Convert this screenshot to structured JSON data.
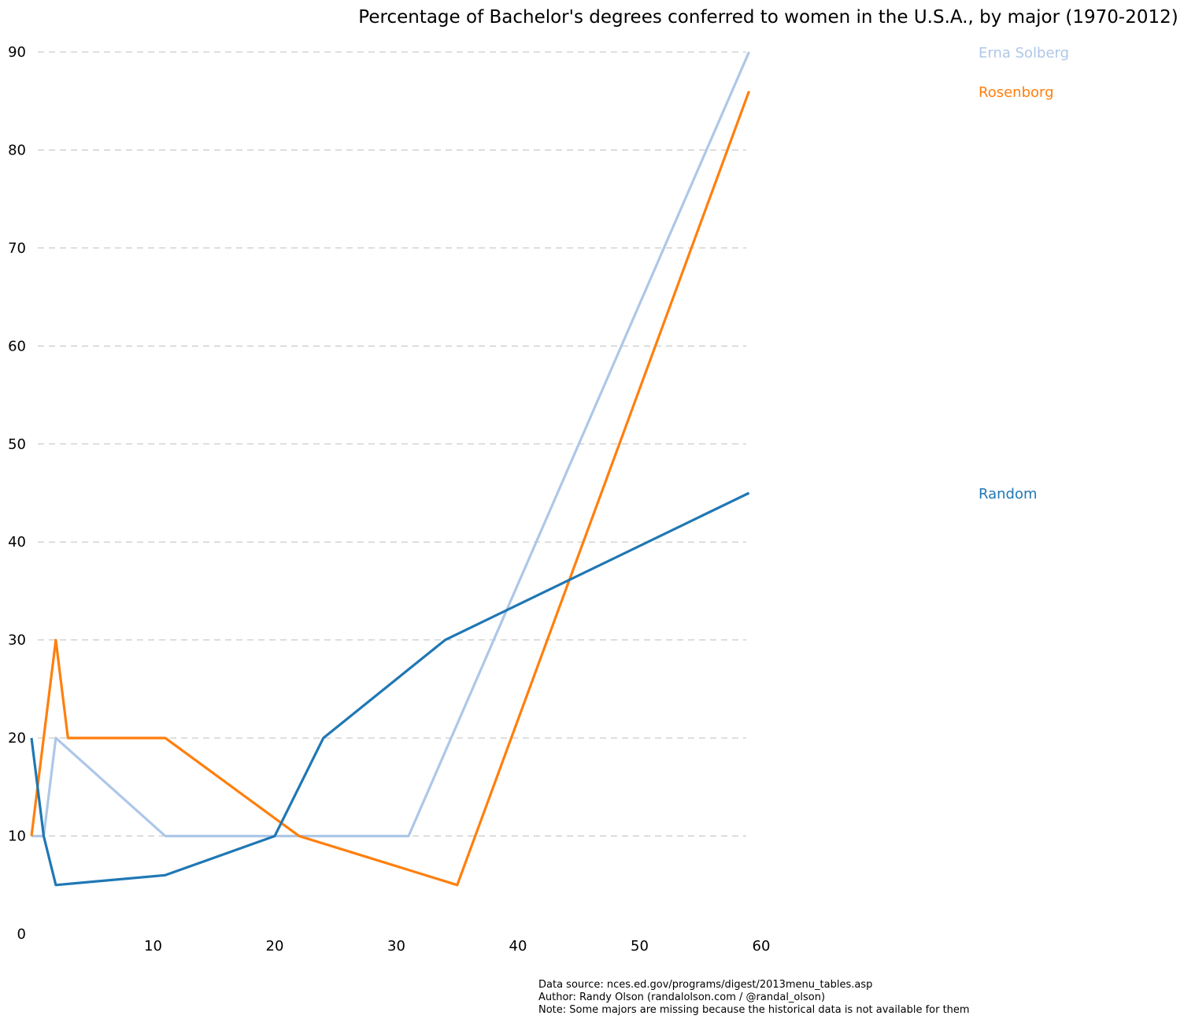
{
  "chart_data": {
    "type": "line",
    "title": "Percentage of Bachelor's degrees conferred to women in the U.S.A., by major (1970-2012)",
    "xlabel": "",
    "ylabel": "",
    "xlim": [
      0,
      60
    ],
    "ylim": [
      0,
      90
    ],
    "x_ticks": [
      10,
      20,
      30,
      40,
      50,
      60
    ],
    "y_ticks": [
      0,
      10,
      20,
      30,
      40,
      50,
      60,
      70,
      80,
      90
    ],
    "grid": "horizontal dashed",
    "legend": "right of plot, labels at line end values",
    "series": [
      {
        "name": "Erna Solberg",
        "color": "#aec7e8",
        "points": [
          [
            0,
            10
          ],
          [
            1,
            10
          ],
          [
            2,
            20
          ],
          [
            11,
            10
          ],
          [
            23,
            10
          ],
          [
            31,
            10
          ],
          [
            59,
            90
          ]
        ]
      },
      {
        "name": "Rosenborg",
        "color": "#ff7f0e",
        "points": [
          [
            0,
            10
          ],
          [
            2,
            30
          ],
          [
            3,
            20
          ],
          [
            11,
            20
          ],
          [
            22,
            10
          ],
          [
            35,
            5
          ],
          [
            59,
            86
          ]
        ]
      },
      {
        "name": "Random",
        "color": "#1f77b4",
        "points": [
          [
            0,
            20
          ],
          [
            1,
            10
          ],
          [
            2,
            5
          ],
          [
            11,
            6
          ],
          [
            20,
            10
          ],
          [
            24,
            20
          ],
          [
            34,
            30
          ],
          [
            59,
            45
          ]
        ]
      }
    ]
  },
  "footer": {
    "line1": "Data source: nces.ed.gov/programs/digest/2013menu_tables.asp",
    "line2": "Author: Randy Olson (randalolson.com / @randal_olson)",
    "line3": "Note: Some majors are missing because the historical data is not available for them"
  }
}
